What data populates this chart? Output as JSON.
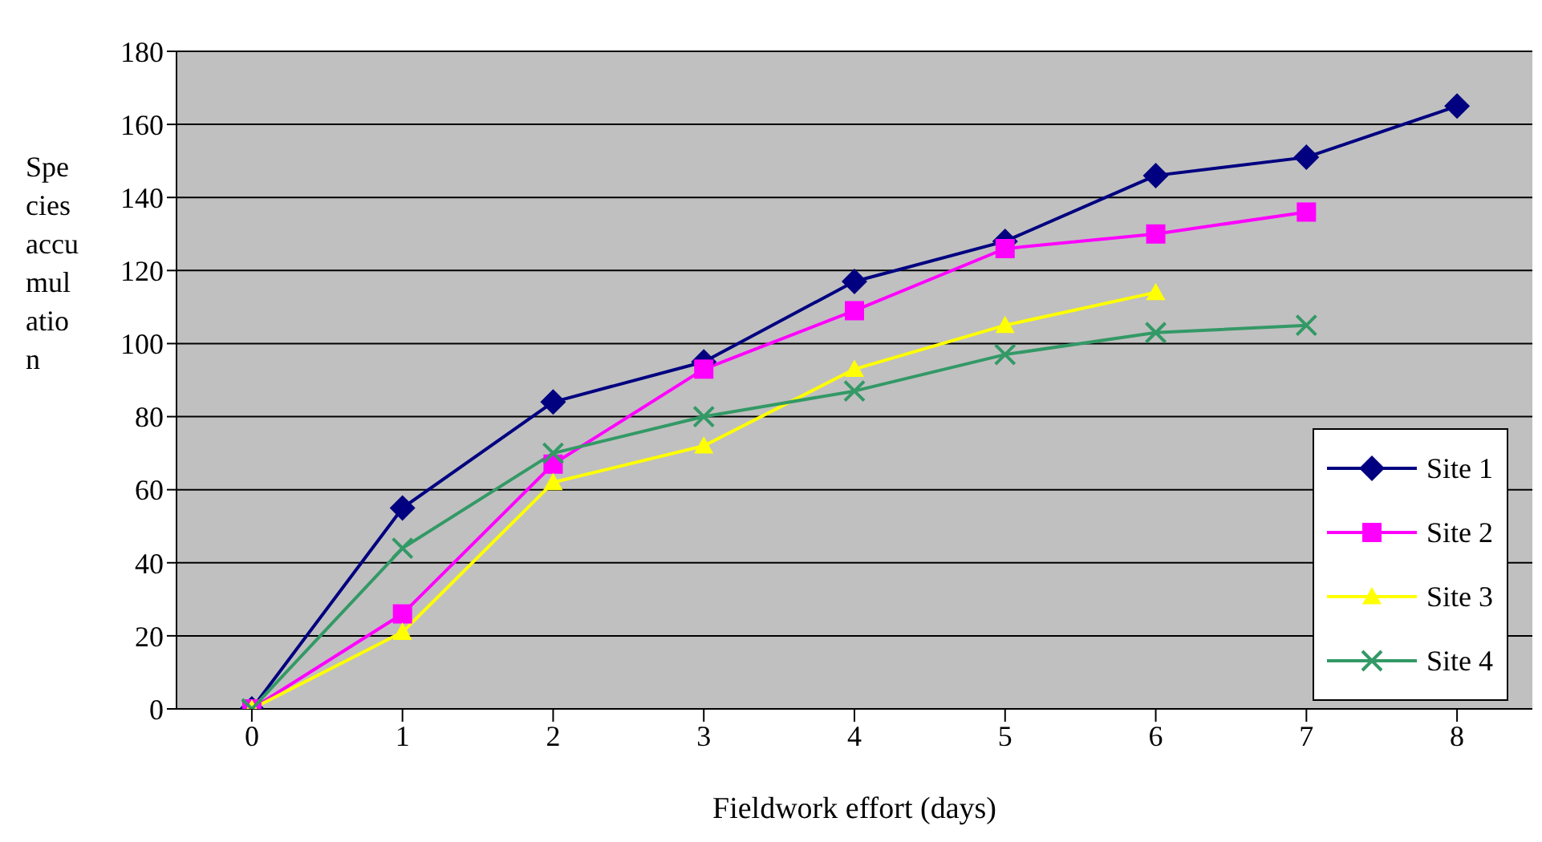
{
  "chart_data": {
    "type": "line",
    "xlabel": "Fieldwork effort (days)",
    "ylabel": "Species accumulation",
    "categories": [
      "0",
      "1",
      "2",
      "3",
      "4",
      "5",
      "6",
      "7",
      "8"
    ],
    "ylim": [
      0,
      180
    ],
    "yticks": [
      0,
      20,
      40,
      60,
      80,
      100,
      120,
      140,
      160,
      180
    ],
    "grid": "y",
    "legend": "bottom right",
    "line_style": "solid",
    "series": [
      {
        "name": "Site 1",
        "color": "#000080",
        "marker": "diamond",
        "values": [
          0,
          55,
          84,
          95,
          117,
          128,
          146,
          151,
          165
        ]
      },
      {
        "name": "Site 2",
        "color": "#ff00ff",
        "marker": "square",
        "values": [
          0,
          26,
          67,
          93,
          109,
          126,
          130,
          136,
          null
        ]
      },
      {
        "name": "Site 3",
        "color": "#ffff00",
        "marker": "triangle",
        "values": [
          0,
          21,
          62,
          72,
          93,
          105,
          114,
          null,
          null
        ]
      },
      {
        "name": "Site 4",
        "color": "#339966",
        "marker": "cross",
        "values": [
          0,
          44,
          70,
          80,
          87,
          97,
          103,
          105,
          null
        ]
      }
    ]
  }
}
